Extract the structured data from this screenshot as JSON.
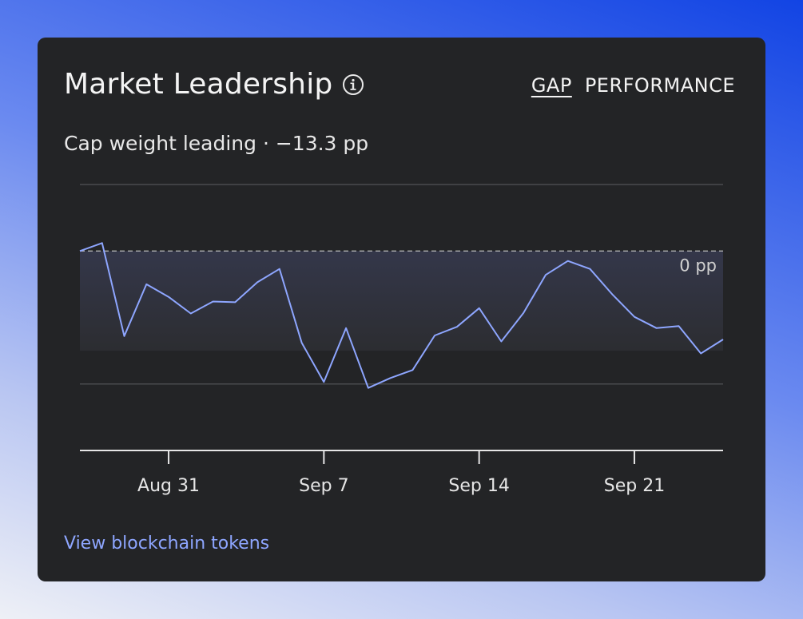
{
  "card": {
    "title": "Market Leadership",
    "tabs": [
      "GAP",
      "PERFORMANCE"
    ],
    "active_tab": "GAP",
    "subtitle": "Cap weight leading · −13.3 pp",
    "link": "View blockchain tokens"
  },
  "colors": {
    "line": "#8ea6ff",
    "card": "#232426",
    "grid": "#4a4b4e",
    "text": "#f4f4f4",
    "link": "#8ea6ff"
  },
  "chart_data": {
    "type": "line",
    "title": "",
    "xlabel": "",
    "ylabel": "",
    "x_tick_labels": [
      "Aug 31",
      "Sep 7",
      "Sep 14",
      "Sep 21"
    ],
    "x_tick_positions": [
      4,
      11,
      18,
      25
    ],
    "reference_line": {
      "value": 0,
      "label": "0 pp",
      "style": "dashed"
    },
    "ylim": [
      -30,
      10
    ],
    "grid": true,
    "series": [
      {
        "name": "",
        "values": [
          0,
          1.2,
          -12.8,
          -5,
          -6.9,
          -9.4,
          -7.6,
          -7.7,
          -4.7,
          -2.7,
          -13.8,
          -19.7,
          -11.6,
          -20.6,
          -19.1,
          -17.9,
          -12.7,
          -11.4,
          -8.6,
          -13.6,
          -9.3,
          -3.6,
          -1.5,
          -2.7,
          -6.5,
          -9.9,
          -11.6,
          -11.3,
          -15.4,
          -13.3
        ]
      }
    ],
    "highlight_band": {
      "from": 0,
      "to": -15
    }
  }
}
